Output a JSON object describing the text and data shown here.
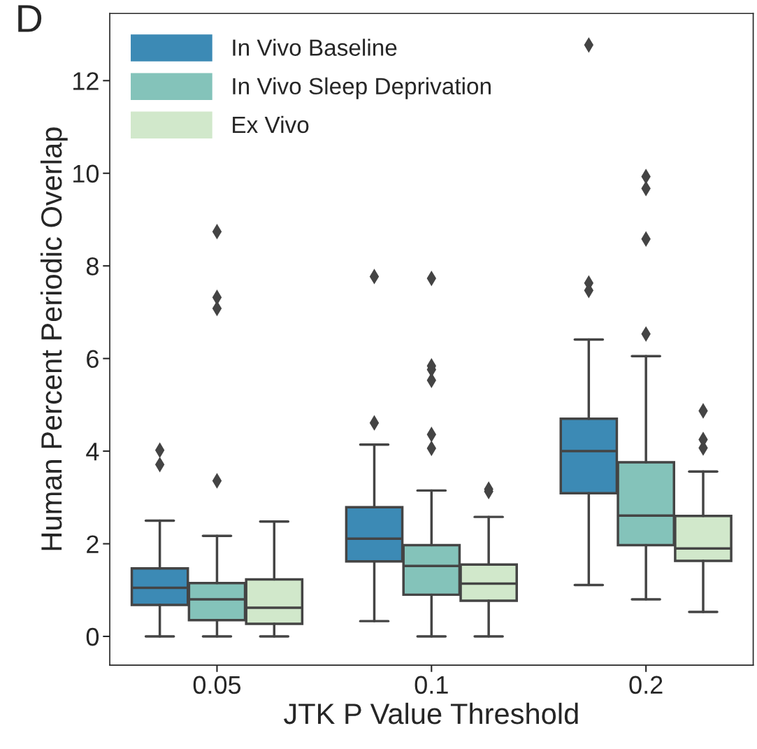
{
  "chart_data": {
    "type": "box",
    "xlabel": "JTK P Value Threshold",
    "ylabel": "Human Percent Periodic Overlap",
    "categories": [
      "0.05",
      "0.1",
      "0.2"
    ],
    "ylim": [
      -0.62,
      13.45
    ],
    "yticks": [
      0,
      2,
      4,
      6,
      8,
      10,
      12
    ],
    "grid": false,
    "legend": "top left",
    "marker": "diamond",
    "annotations": [
      "D"
    ],
    "series": [
      {
        "name": "In Vivo Baseline",
        "color": "#3c8ab5",
        "boxes": [
          {
            "low": 0,
            "q1": 0.68,
            "median": 1.05,
            "q3": 1.47,
            "high": 2.5,
            "outliers": [
              3.71,
              4.02
            ]
          },
          {
            "low": 0.33,
            "q1": 1.62,
            "median": 2.11,
            "q3": 2.79,
            "high": 4.14,
            "outliers": [
              4.61,
              7.77
            ]
          },
          {
            "low": 1.11,
            "q1": 3.09,
            "median": 4.0,
            "q3": 4.7,
            "high": 6.41,
            "outliers": [
              7.47,
              7.63,
              12.77
            ]
          }
        ]
      },
      {
        "name": "In Vivo Sleep Deprivation",
        "color": "#84c3ba",
        "boxes": [
          {
            "low": 0,
            "q1": 0.35,
            "median": 0.8,
            "q3": 1.15,
            "high": 2.17,
            "outliers": [
              3.36,
              7.08,
              7.32,
              8.74
            ]
          },
          {
            "low": 0,
            "q1": 0.9,
            "median": 1.52,
            "q3": 1.97,
            "high": 3.15,
            "outliers": [
              4.06,
              4.36,
              5.53,
              5.76,
              5.84,
              7.73
            ]
          },
          {
            "low": 0.8,
            "q1": 1.97,
            "median": 2.61,
            "q3": 3.76,
            "high": 6.05,
            "outliers": [
              6.53,
              8.58,
              9.67,
              9.93
            ]
          }
        ]
      },
      {
        "name": "Ex Vivo",
        "color": "#d1e8cb",
        "boxes": [
          {
            "low": 0,
            "q1": 0.27,
            "median": 0.62,
            "q3": 1.23,
            "high": 2.48
          },
          {
            "low": 0,
            "q1": 0.77,
            "median": 1.14,
            "q3": 1.55,
            "high": 2.58,
            "outliers": [
              3.13,
              3.18
            ]
          },
          {
            "low": 0.53,
            "q1": 1.63,
            "median": 1.9,
            "q3": 2.6,
            "high": 3.56,
            "outliers": [
              4.07,
              4.25,
              4.87
            ]
          }
        ]
      }
    ]
  }
}
